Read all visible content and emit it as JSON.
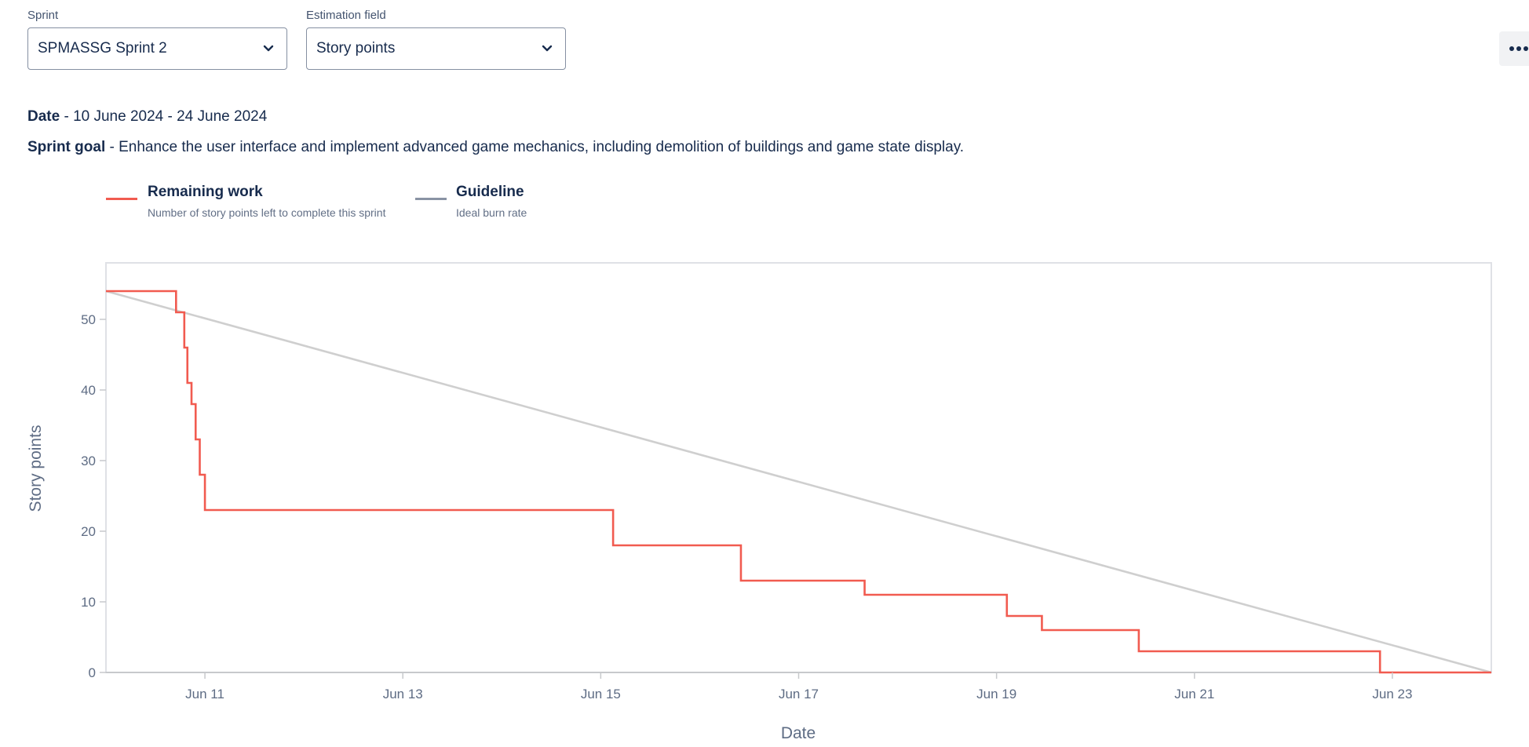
{
  "filters": {
    "sprint": {
      "label": "Sprint",
      "value": "SPMASSG Sprint 2"
    },
    "estimation": {
      "label": "Estimation field",
      "value": "Story points"
    }
  },
  "more_button": {
    "icon": "more-horizontal-icon",
    "label": "•••"
  },
  "sprint_info": {
    "date_label": "Date",
    "date_value": " - 10 June 2024 - 24 June 2024",
    "goal_label": "Sprint goal",
    "goal_value": " - Enhance the user interface and implement advanced game mechanics, including demolition of buildings and game state display."
  },
  "legend": [
    {
      "title": "Remaining work",
      "description": "Number of story points left to complete this sprint",
      "color": "#f15b50"
    },
    {
      "title": "Guideline",
      "description": "Ideal burn rate",
      "color": "#8993a4"
    }
  ],
  "colors": {
    "remaining": "#f15b50",
    "guideline": "#cfcfcf",
    "axis": "#c7c9cc",
    "tick_text": "#5e6c84"
  },
  "chart_data": {
    "type": "line",
    "title": "",
    "xlabel": "Date",
    "ylabel": "Story points",
    "x_domain": [
      "2024-06-10 00:00",
      "2024-06-24 00:00"
    ],
    "ylim": [
      0,
      58
    ],
    "y_ticks": [
      0,
      10,
      20,
      30,
      40,
      50
    ],
    "x_ticks": [
      {
        "label": "Jun 11",
        "at": "2024-06-11 00:00"
      },
      {
        "label": "Jun 13",
        "at": "2024-06-13 00:00"
      },
      {
        "label": "Jun 15",
        "at": "2024-06-15 00:00"
      },
      {
        "label": "Jun 17",
        "at": "2024-06-17 00:00"
      },
      {
        "label": "Jun 19",
        "at": "2024-06-19 00:00"
      },
      {
        "label": "Jun 21",
        "at": "2024-06-21 00:00"
      },
      {
        "label": "Jun 23",
        "at": "2024-06-23 00:00"
      }
    ],
    "grid": false,
    "legend_position": "top-left",
    "series": [
      {
        "name": "Remaining work",
        "style": "step",
        "points": [
          {
            "x": "2024-06-10 00:00",
            "y": 54
          },
          {
            "x": "2024-06-10 17:00",
            "y": 51
          },
          {
            "x": "2024-06-10 19:00",
            "y": 46
          },
          {
            "x": "2024-06-10 19:45",
            "y": 41
          },
          {
            "x": "2024-06-10 20:45",
            "y": 38
          },
          {
            "x": "2024-06-10 21:45",
            "y": 33
          },
          {
            "x": "2024-06-10 22:45",
            "y": 28
          },
          {
            "x": "2024-06-11 00:00",
            "y": 23
          },
          {
            "x": "2024-06-15 03:00",
            "y": 18
          },
          {
            "x": "2024-06-16 10:00",
            "y": 13
          },
          {
            "x": "2024-06-17 16:00",
            "y": 11
          },
          {
            "x": "2024-06-19 02:30",
            "y": 8
          },
          {
            "x": "2024-06-19 11:00",
            "y": 6
          },
          {
            "x": "2024-06-20 10:30",
            "y": 3
          },
          {
            "x": "2024-06-22 21:00",
            "y": 0
          },
          {
            "x": "2024-06-24 00:00",
            "y": 0
          }
        ]
      },
      {
        "name": "Guideline",
        "style": "line",
        "points": [
          {
            "x": "2024-06-10 00:00",
            "y": 54
          },
          {
            "x": "2024-06-24 00:00",
            "y": 0
          }
        ]
      }
    ]
  }
}
